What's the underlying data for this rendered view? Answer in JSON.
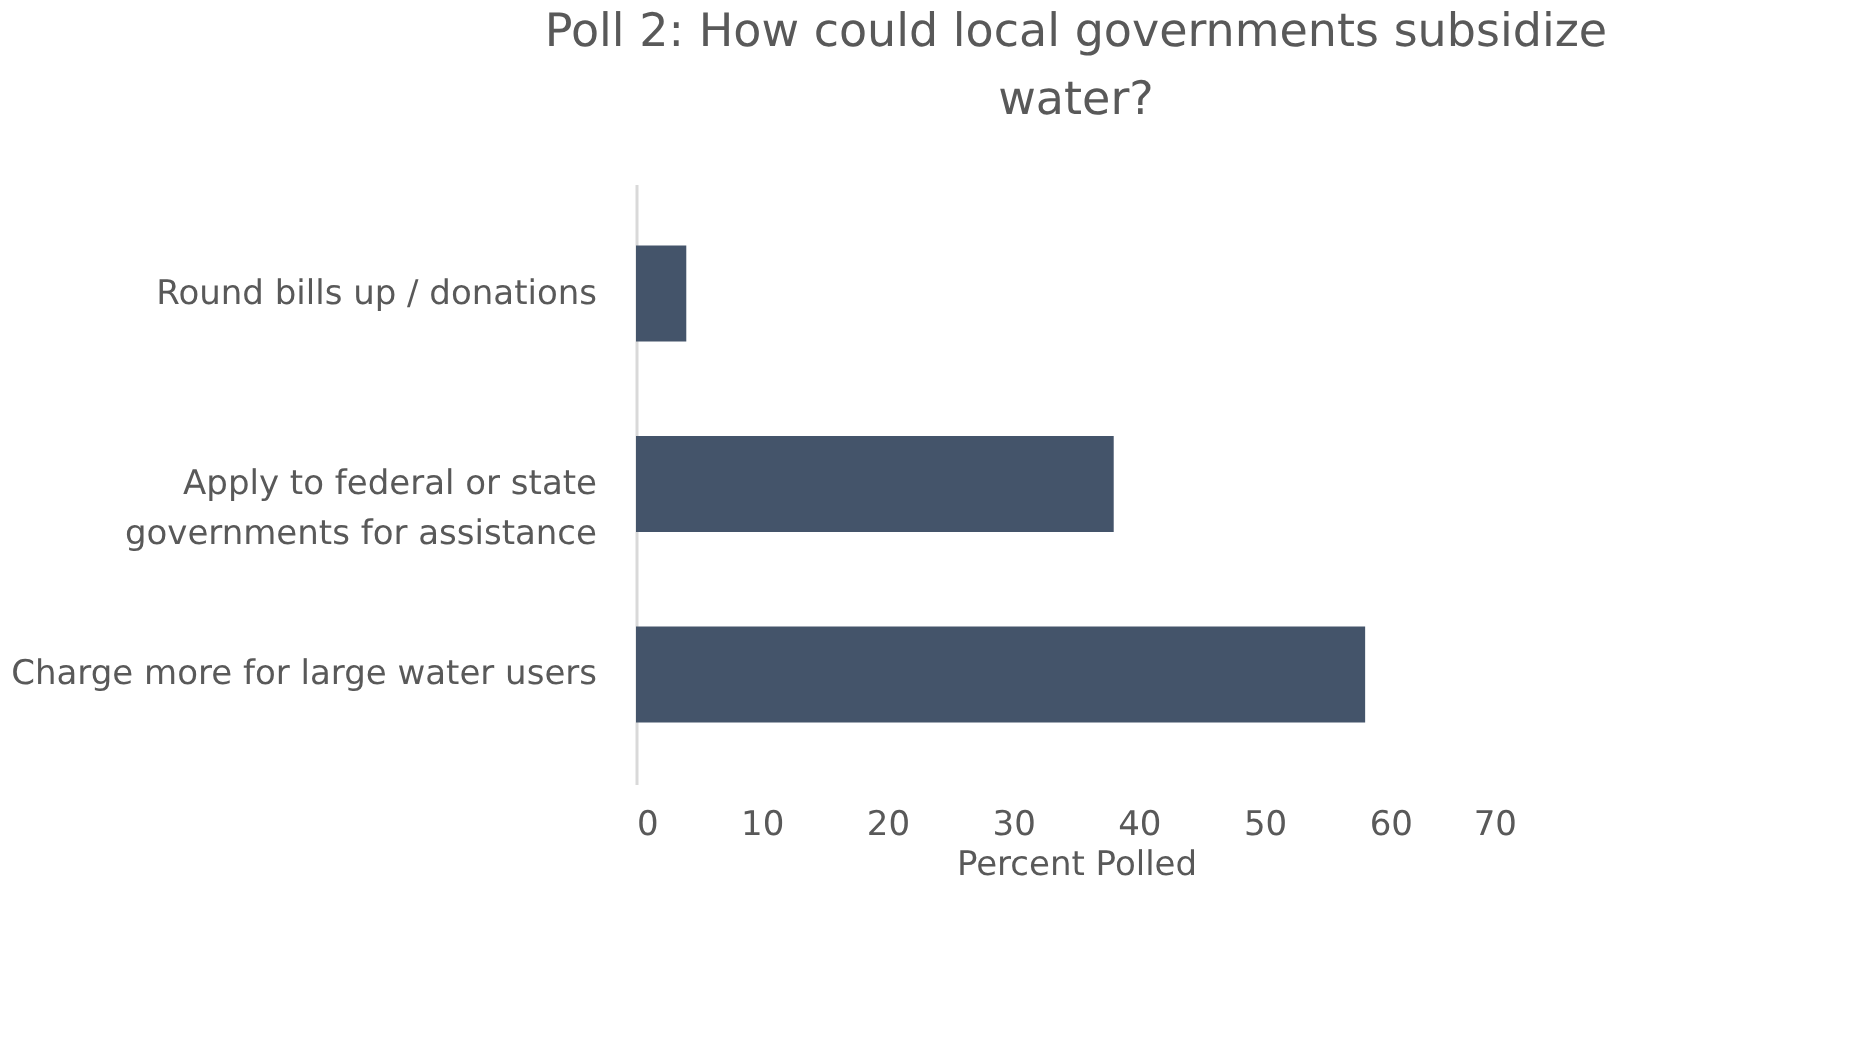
{
  "chart_data": {
    "type": "bar",
    "orientation": "horizontal",
    "title": "Poll 2: How could local governments subsidize water?",
    "categories": [
      "Round bills up / donations",
      "Apply to federal or state governments for assistance",
      "Charge more for large water users"
    ],
    "values": [
      4,
      38,
      58
    ],
    "color": "#44546a",
    "xlabel": "Percent Polled",
    "xlim": [
      0,
      70
    ],
    "xticks": [
      0,
      10,
      20,
      30,
      40,
      50,
      60,
      70
    ],
    "grid": false
  }
}
